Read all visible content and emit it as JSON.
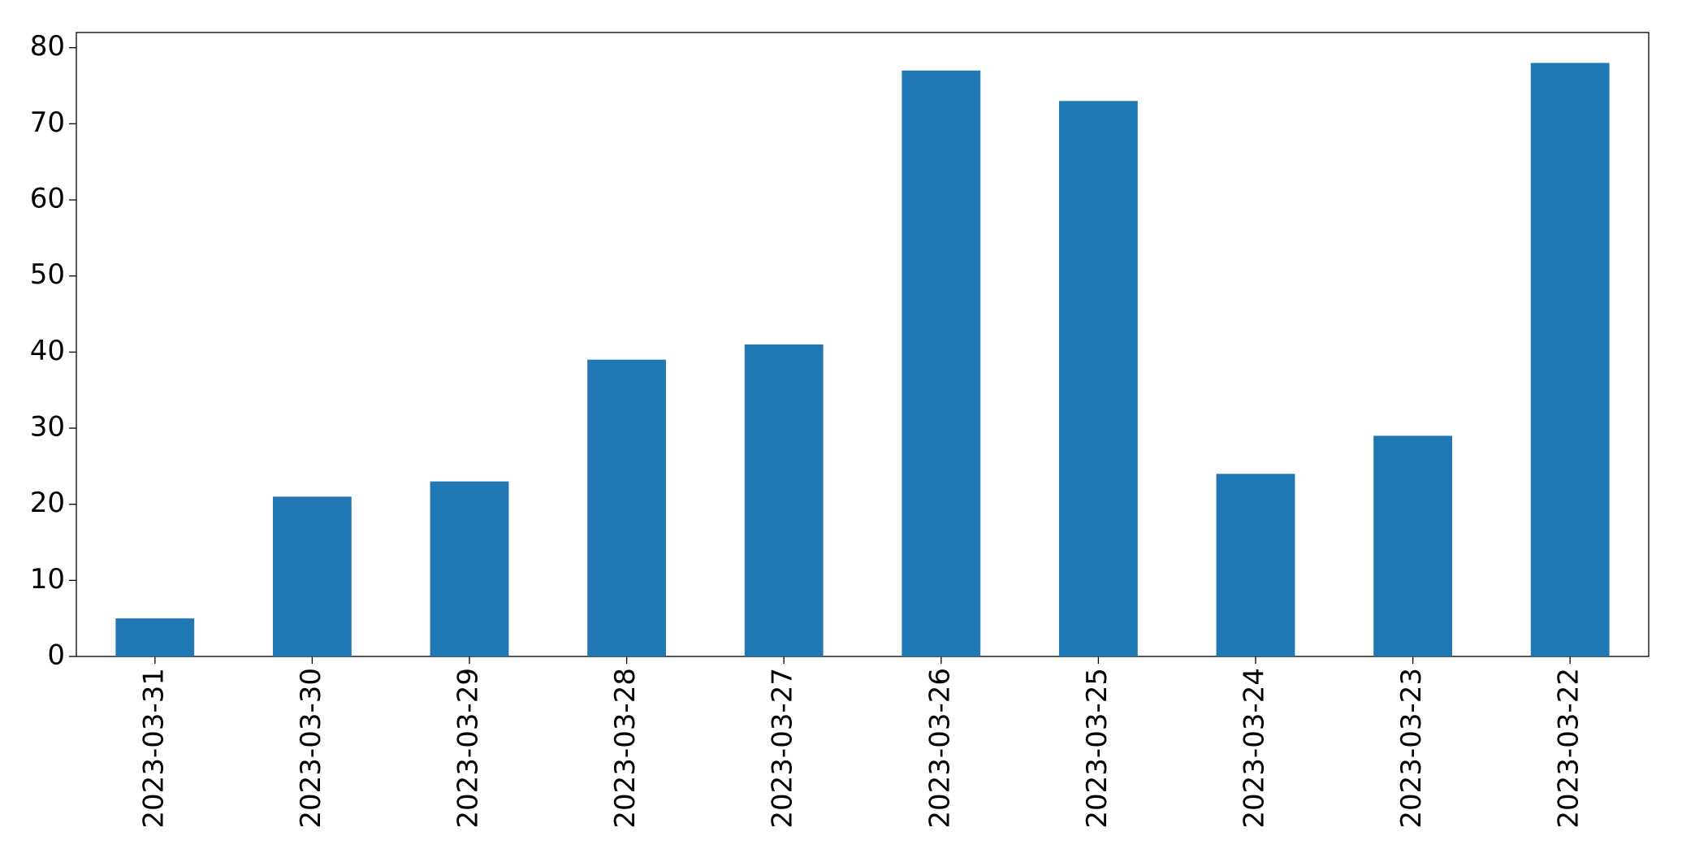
{
  "chart_data": {
    "type": "bar",
    "categories": [
      "2023-03-31",
      "2023-03-30",
      "2023-03-29",
      "2023-03-28",
      "2023-03-27",
      "2023-03-26",
      "2023-03-25",
      "2023-03-24",
      "2023-03-23",
      "2023-03-22"
    ],
    "values": [
      5,
      21,
      23,
      39,
      41,
      77,
      73,
      24,
      29,
      78
    ],
    "color": "#1f77b4",
    "ylim": [
      0,
      82
    ],
    "yticks": [
      0,
      10,
      20,
      30,
      40,
      50,
      60,
      70,
      80
    ],
    "grid": false
  }
}
